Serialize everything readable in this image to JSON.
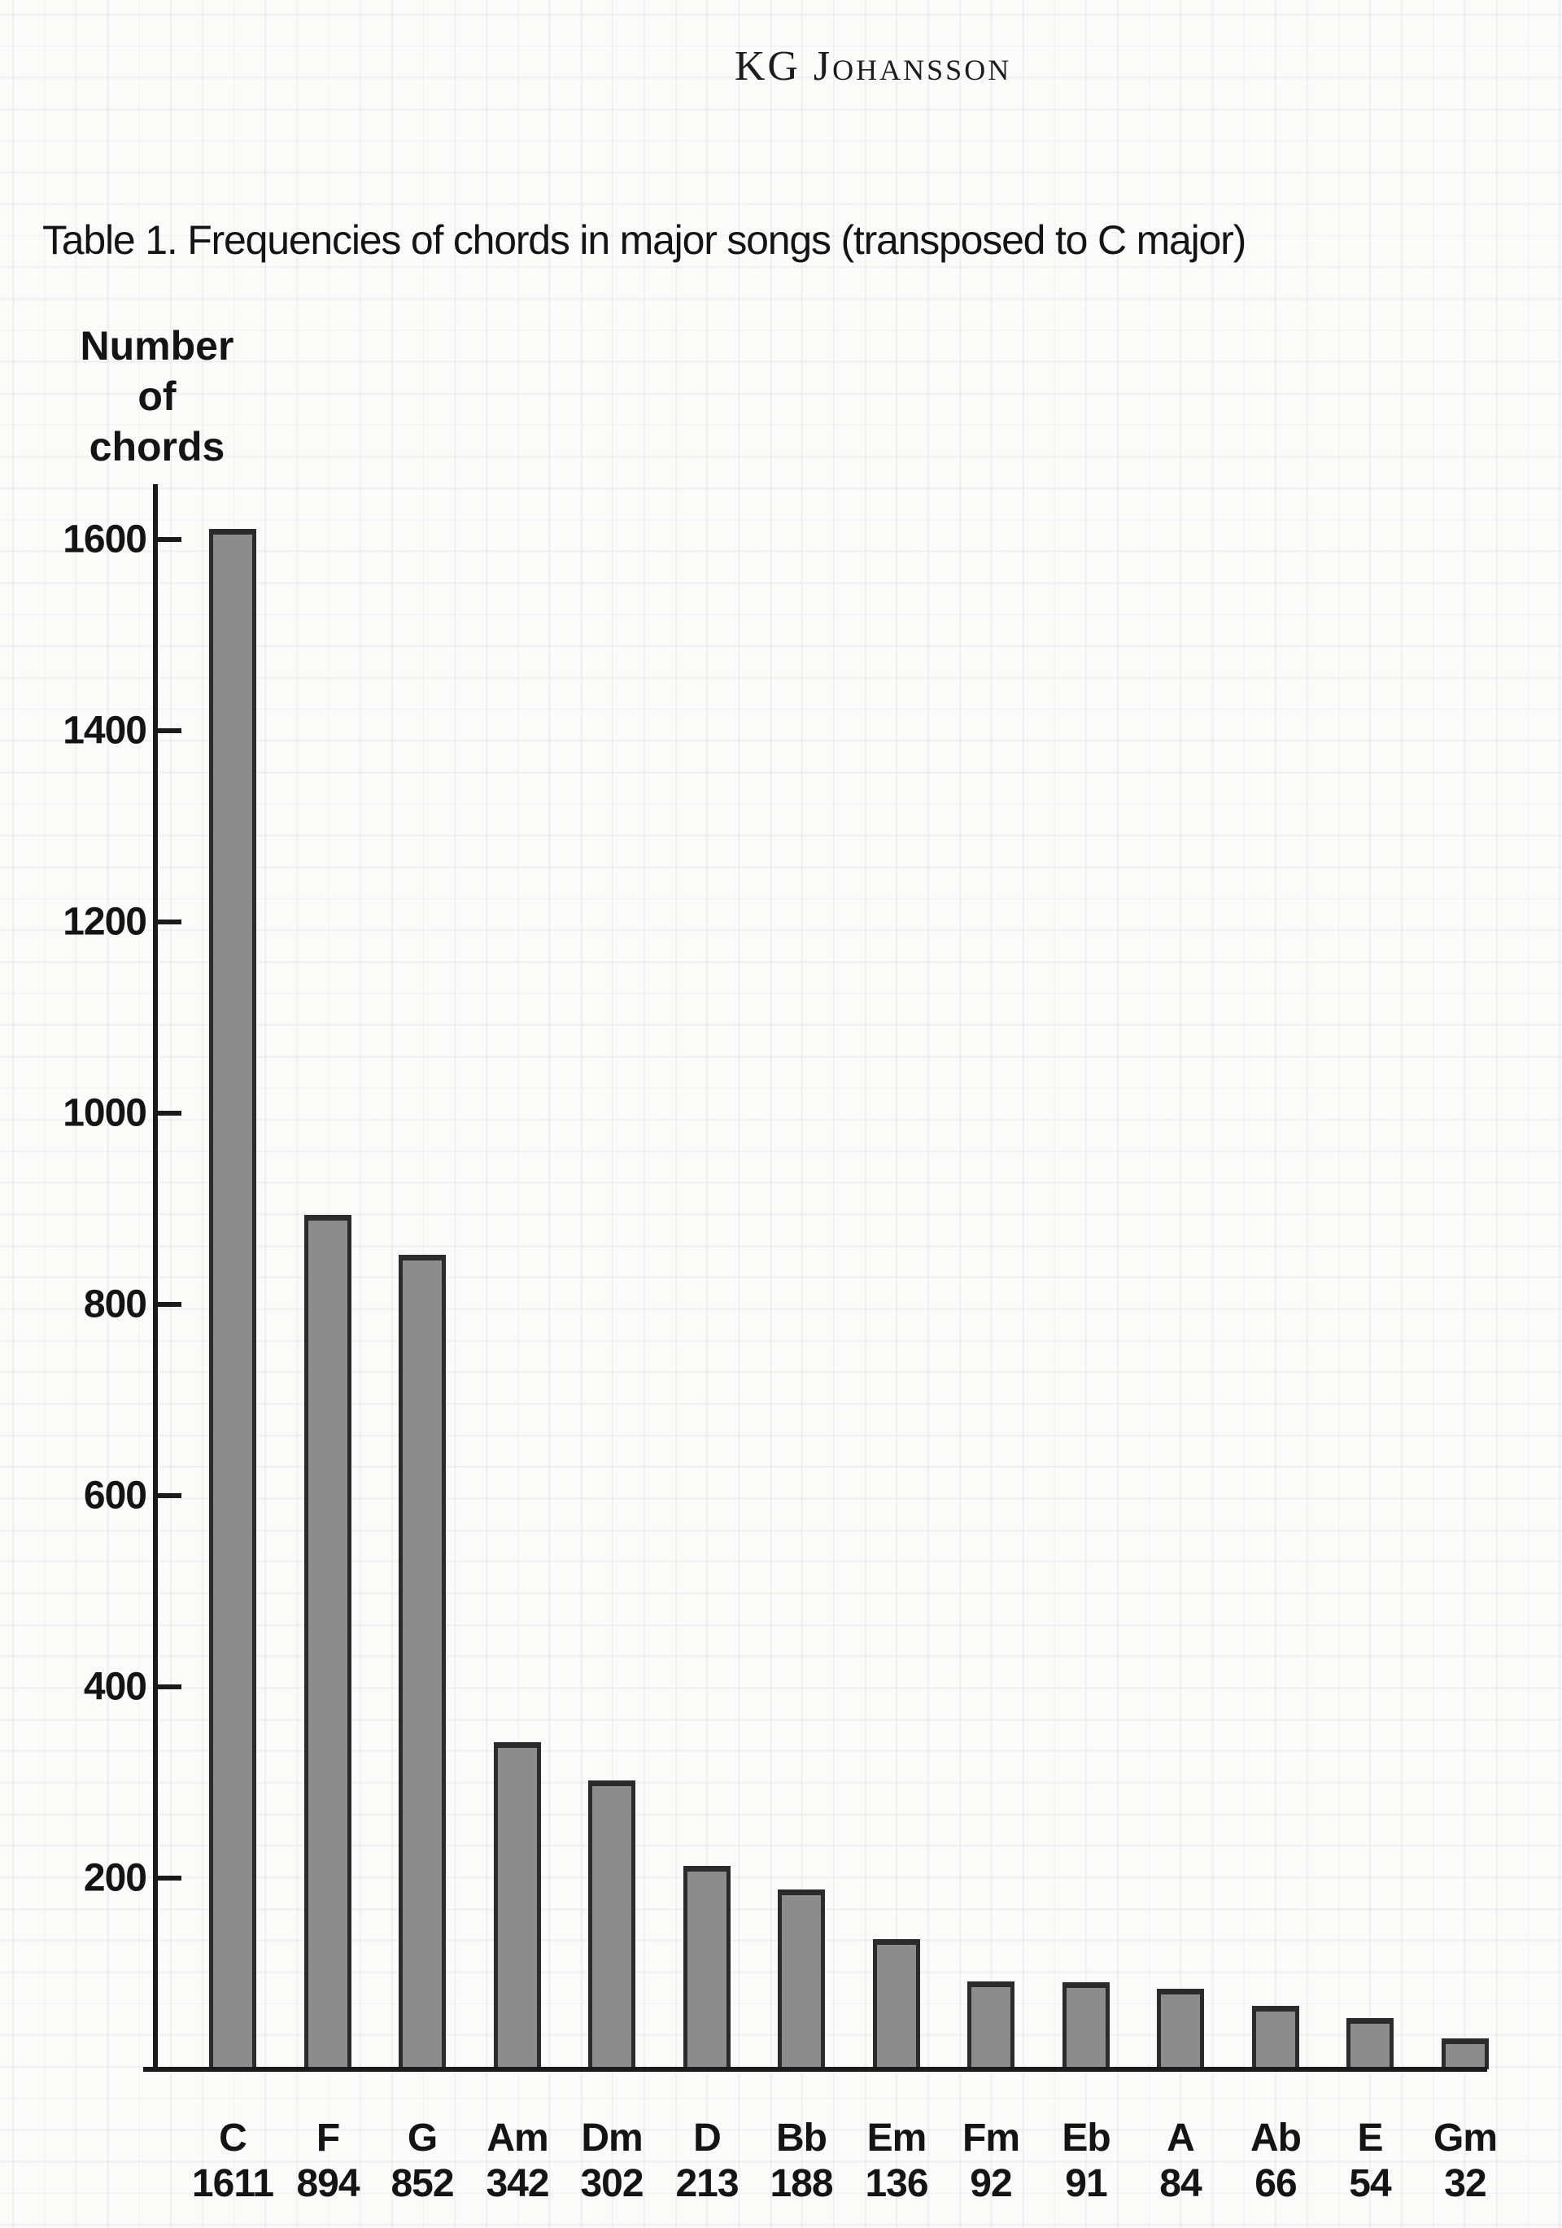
{
  "header": {
    "author": "KG Johansson"
  },
  "chart_data": {
    "type": "bar",
    "title": "Table 1. Frequencies of chords in major songs (transposed to C major)",
    "ylabel": "Number of chords",
    "ylabel_lines": [
      "Number",
      "of",
      "chords"
    ],
    "categories": [
      "C",
      "F",
      "G",
      "Am",
      "Dm",
      "D",
      "Bb",
      "Em",
      "Fm",
      "Eb",
      "A",
      "Ab",
      "E",
      "Gm"
    ],
    "values": [
      1611,
      894,
      852,
      342,
      302,
      213,
      188,
      136,
      92,
      91,
      84,
      66,
      54,
      32
    ],
    "yticks": [
      200,
      400,
      600,
      800,
      1000,
      1200,
      1400,
      1600
    ],
    "ylim": [
      0,
      1660
    ],
    "grid": true,
    "legend_position": "none",
    "colors": {
      "bar_fill": "#8c8c8c",
      "bar_border": "#2b2b2b",
      "axis": "#1a1a1a",
      "text": "#161616",
      "background": "#fbfbfa",
      "gridline": "#e9e9e7"
    }
  }
}
